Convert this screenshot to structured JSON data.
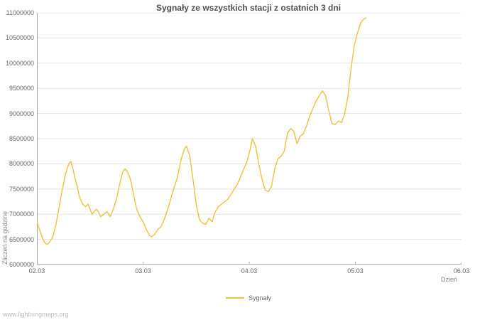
{
  "watermark": "www.lightningmaps.org",
  "chart_data": {
    "type": "line",
    "title": "Sygnały ze wszystkich stacji z ostatnich 3 dni",
    "xlabel": "Dzień",
    "ylabel": "Zliczeń na godzinę",
    "xlim": [
      2,
      6
    ],
    "ylim": [
      6000000,
      11000000
    ],
    "grid": true,
    "legend_position": "bottom-center",
    "x_ticks": [
      "02.03",
      "03.03",
      "04.03",
      "05.03",
      "06.03"
    ],
    "x_tick_values": [
      2,
      3,
      4,
      5,
      6
    ],
    "y_ticks": [
      6000000,
      6500000,
      7000000,
      7500000,
      8000000,
      8500000,
      9000000,
      9500000,
      10000000,
      10500000,
      11000000
    ],
    "colors": {
      "line": "#edc240",
      "grid": "#e3e3e3",
      "axis": "#aaaaaa",
      "tick_text": "#666666",
      "title_text": "#4f4f4f"
    },
    "series": [
      {
        "name": "Sygnały",
        "color": "#edc240",
        "x": [
          2.0,
          2.02,
          2.04,
          2.06,
          2.08,
          2.1,
          2.12,
          2.15,
          2.18,
          2.21,
          2.24,
          2.27,
          2.3,
          2.32,
          2.34,
          2.36,
          2.38,
          2.4,
          2.43,
          2.46,
          2.48,
          2.5,
          2.52,
          2.54,
          2.56,
          2.58,
          2.6,
          2.63,
          2.66,
          2.69,
          2.72,
          2.75,
          2.78,
          2.81,
          2.83,
          2.85,
          2.88,
          2.91,
          2.94,
          2.97,
          3.0,
          3.03,
          3.06,
          3.08,
          3.11,
          3.14,
          3.17,
          3.2,
          3.24,
          3.28,
          3.32,
          3.36,
          3.39,
          3.41,
          3.44,
          3.47,
          3.5,
          3.53,
          3.56,
          3.59,
          3.62,
          3.65,
          3.68,
          3.71,
          3.74,
          3.77,
          3.8,
          3.83,
          3.86,
          3.89,
          3.92,
          3.95,
          3.98,
          4.01,
          4.03,
          4.06,
          4.09,
          4.12,
          4.15,
          4.18,
          4.21,
          4.24,
          4.27,
          4.3,
          4.33,
          4.36,
          4.39,
          4.42,
          4.45,
          4.48,
          4.51,
          4.54,
          4.57,
          4.6,
          4.63,
          4.66,
          4.69,
          4.72,
          4.75,
          4.78,
          4.81,
          4.84,
          4.87,
          4.9,
          4.93,
          4.96,
          4.99,
          5.02,
          5.05,
          5.08,
          5.1
        ],
        "y": [
          6850000,
          6720000,
          6600000,
          6480000,
          6420000,
          6400000,
          6450000,
          6550000,
          6800000,
          7150000,
          7500000,
          7800000,
          8000000,
          8050000,
          7900000,
          7700000,
          7550000,
          7350000,
          7200000,
          7150000,
          7200000,
          7100000,
          7000000,
          7050000,
          7100000,
          7050000,
          6950000,
          7000000,
          7050000,
          6950000,
          7100000,
          7300000,
          7600000,
          7850000,
          7900000,
          7850000,
          7700000,
          7400000,
          7100000,
          6950000,
          6850000,
          6700000,
          6580000,
          6550000,
          6600000,
          6700000,
          6750000,
          6900000,
          7150000,
          7450000,
          7700000,
          8100000,
          8300000,
          8350000,
          8150000,
          7700000,
          7200000,
          6900000,
          6820000,
          6800000,
          6920000,
          6850000,
          7050000,
          7150000,
          7200000,
          7250000,
          7300000,
          7400000,
          7500000,
          7600000,
          7750000,
          7900000,
          8050000,
          8300000,
          8500000,
          8350000,
          8000000,
          7700000,
          7480000,
          7450000,
          7550000,
          7900000,
          8100000,
          8150000,
          8250000,
          8600000,
          8700000,
          8650000,
          8400000,
          8550000,
          8600000,
          8750000,
          8950000,
          9100000,
          9250000,
          9350000,
          9450000,
          9350000,
          9050000,
          8800000,
          8780000,
          8850000,
          8820000,
          9000000,
          9350000,
          9900000,
          10350000,
          10600000,
          10800000,
          10880000,
          10900000
        ]
      }
    ]
  }
}
